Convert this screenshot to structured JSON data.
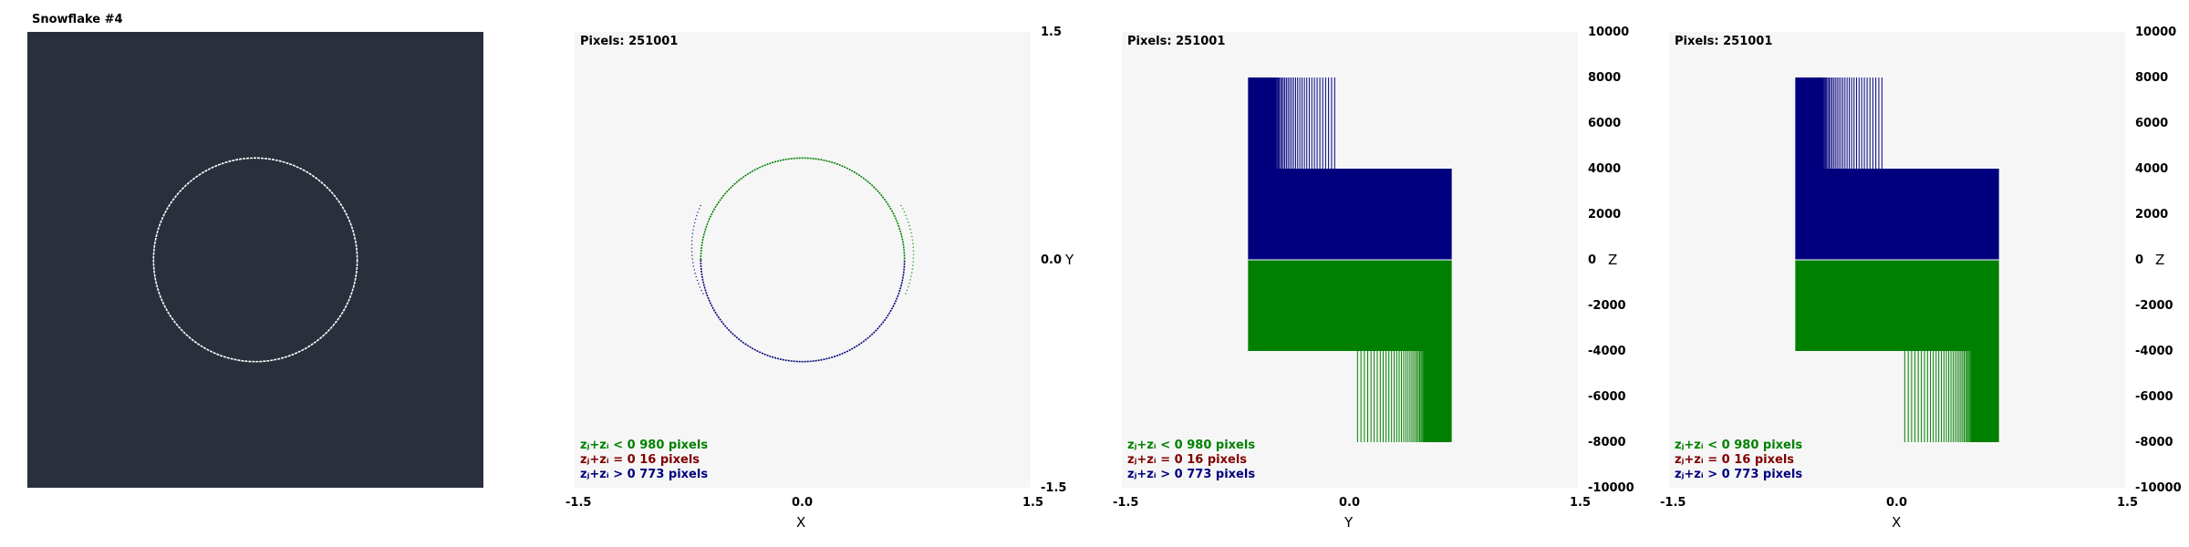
{
  "snowflake_title": "Snowflake #4",
  "colors": {
    "snow_bg": "#2a2f3c",
    "circle_white": "#ffffff",
    "plot_bg": "#f6f6f6",
    "green": "#008000",
    "blue": "#00007f",
    "red": "#800000"
  },
  "plots": [
    {
      "pixels_text": "Pixels: 251001",
      "legend": [
        {
          "text": "zⱼ+zᵢ < 0  980 pixels",
          "color": "#008000"
        },
        {
          "text": "zⱼ+zᵢ = 0  16 pixels",
          "color": "#800000"
        },
        {
          "text": "zⱼ+zᵢ > 0  773 pixels",
          "color": "#00007f"
        }
      ],
      "xticks": [
        "-1.5",
        "0.0",
        "1.5"
      ],
      "yticks": [
        "1.5",
        "0.0",
        "-1.5"
      ],
      "xlabel": "X",
      "ylabel": "Y"
    },
    {
      "pixels_text": "Pixels: 251001",
      "legend": [
        {
          "text": "zⱼ+zᵢ < 0  980 pixels",
          "color": "#008000"
        },
        {
          "text": "zⱼ+zᵢ = 0  16 pixels",
          "color": "#800000"
        },
        {
          "text": "zⱼ+zᵢ > 0  773 pixels",
          "color": "#00007f"
        }
      ],
      "xticks": [
        "-1.5",
        "0.0",
        "1.5"
      ],
      "yticks": [
        "10000",
        "8000",
        "6000",
        "4000",
        "2000",
        "0",
        "-2000",
        "-4000",
        "-6000",
        "-8000",
        "-10000"
      ],
      "xlabel": "Y",
      "ylabel": "Z"
    },
    {
      "pixels_text": "Pixels: 251001",
      "legend": [
        {
          "text": "zⱼ+zᵢ < 0  980 pixels",
          "color": "#008000"
        },
        {
          "text": "zⱼ+zᵢ = 0  16 pixels",
          "color": "#800000"
        },
        {
          "text": "zⱼ+zᵢ > 0  773 pixels",
          "color": "#00007f"
        }
      ],
      "xticks": [
        "-1.5",
        "0.0",
        "1.5"
      ],
      "yticks": [
        "10000",
        "8000",
        "6000",
        "4000",
        "2000",
        "0",
        "-2000",
        "-4000",
        "-6000",
        "-8000",
        "-10000"
      ],
      "xlabel": "X",
      "ylabel": "Z"
    }
  ],
  "chart_data": [
    {
      "type": "scatter",
      "title": "Snowflake #4",
      "shape": "circle",
      "center": [
        0,
        0
      ],
      "radius": 0.67,
      "xlim": [
        -1.5,
        1.5
      ],
      "ylim": [
        -1.5,
        1.5
      ],
      "grid": false
    },
    {
      "type": "scatter",
      "title": "Pixels: 251001",
      "xlabel": "X",
      "ylabel": "Y",
      "xlim": [
        -1.5,
        1.5
      ],
      "ylim": [
        -1.5,
        1.5
      ],
      "shape": "circle",
      "center": [
        0,
        0
      ],
      "radius": 0.67,
      "series": [
        {
          "name": "zⱼ+zᵢ < 0",
          "pixels": 980,
          "color": "#008000",
          "arc_y": [
            -0.05,
            1
          ]
        },
        {
          "name": "zⱼ+zᵢ = 0",
          "pixels": 16,
          "color": "#800000"
        },
        {
          "name": "zⱼ+zᵢ > 0",
          "pixels": 773,
          "color": "#00007f",
          "arc_y": [
            -1,
            0.05
          ]
        }
      ],
      "grid": false
    },
    {
      "type": "bar",
      "title": "Pixels: 251001",
      "xlabel": "Y",
      "ylabel": "Z",
      "xlim": [
        -1.5,
        1.5
      ],
      "ylim": [
        -10000,
        10000
      ],
      "series": [
        {
          "name": "zⱼ+zᵢ > 0",
          "color": "#00007f",
          "solid": [
            {
              "x": [
                -0.67,
                0.67
              ],
              "z": [
                0,
                4000
              ]
            },
            {
              "x": [
                -0.67,
                -0.5
              ],
              "z": [
                4000,
                8000
              ]
            }
          ],
          "sparse": {
            "x": [
              -0.5,
              -0.1
            ],
            "z": [
              4000,
              8000
            ]
          }
        },
        {
          "name": "zⱼ+zᵢ < 0",
          "color": "#008000",
          "solid": [
            {
              "x": [
                -0.67,
                0.67
              ],
              "z": [
                -4000,
                0
              ]
            },
            {
              "x": [
                0.5,
                0.67
              ],
              "z": [
                -8000,
                -4000
              ]
            }
          ],
          "sparse": {
            "x": [
              0.05,
              0.5
            ],
            "z": [
              -8000,
              -4000
            ]
          }
        }
      ],
      "grid": false
    },
    {
      "type": "bar",
      "title": "Pixels: 251001",
      "xlabel": "X",
      "ylabel": "Z",
      "xlim": [
        -1.5,
        1.5
      ],
      "ylim": [
        -10000,
        10000
      ],
      "series": [
        {
          "name": "zⱼ+zᵢ > 0",
          "color": "#00007f",
          "solid": [
            {
              "x": [
                -0.67,
                0.67
              ],
              "z": [
                0,
                4000
              ]
            },
            {
              "x": [
                -0.67,
                -0.5
              ],
              "z": [
                4000,
                8000
              ]
            }
          ],
          "sparse": {
            "x": [
              -0.5,
              -0.1
            ],
            "z": [
              4000,
              8000
            ]
          }
        },
        {
          "name": "zⱼ+zᵢ < 0",
          "color": "#008000",
          "solid": [
            {
              "x": [
                -0.67,
                0.67
              ],
              "z": [
                -4000,
                0
              ]
            },
            {
              "x": [
                0.5,
                0.67
              ],
              "z": [
                -8000,
                -4000
              ]
            }
          ],
          "sparse": {
            "x": [
              0.05,
              0.5
            ],
            "z": [
              -8000,
              -4000
            ]
          }
        }
      ],
      "grid": false
    }
  ]
}
